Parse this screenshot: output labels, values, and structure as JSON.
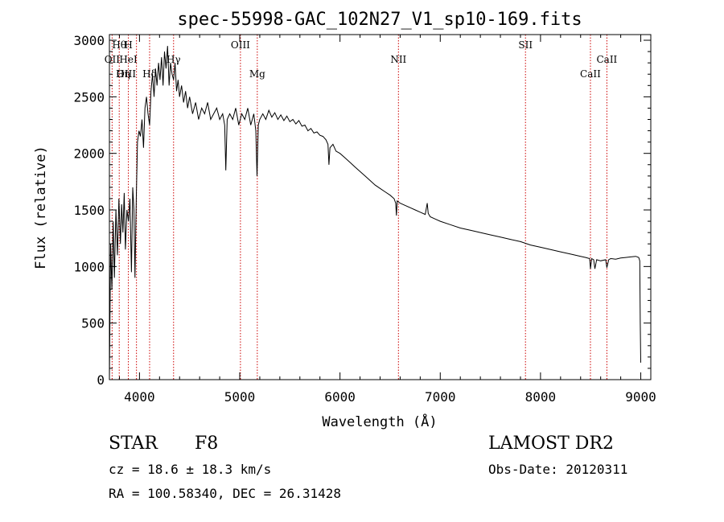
{
  "chart_data": {
    "type": "line",
    "title": "spec-55998-GAC_102N27_V1_sp10-169.fits",
    "xlabel": "Wavelength (Å)",
    "ylabel": "Flux (relative)",
    "xlim": [
      3700,
      9100
    ],
    "ylim": [
      0,
      3050
    ],
    "xticks": [
      4000,
      5000,
      6000,
      7000,
      8000,
      9000
    ],
    "yticks": [
      0,
      500,
      1000,
      1500,
      2000,
      2500,
      3000
    ],
    "grid": false,
    "line_color": "#000000",
    "marker_color": "#cc0000",
    "spectrum": {
      "x": [
        3700,
        3712,
        3725,
        3738,
        3750,
        3765,
        3780,
        3795,
        3810,
        3822,
        3835,
        3848,
        3860,
        3875,
        3890,
        3905,
        3920,
        3933,
        3945,
        3955,
        3968,
        3980,
        3995,
        4010,
        4025,
        4040,
        4055,
        4070,
        4085,
        4101,
        4115,
        4130,
        4145,
        4160,
        4175,
        4190,
        4205,
        4220,
        4235,
        4250,
        4265,
        4280,
        4295,
        4310,
        4325,
        4340,
        4355,
        4370,
        4385,
        4400,
        4420,
        4440,
        4460,
        4480,
        4500,
        4530,
        4560,
        4590,
        4620,
        4650,
        4680,
        4710,
        4740,
        4770,
        4800,
        4830,
        4850,
        4861,
        4875,
        4900,
        4930,
        4960,
        4990,
        5020,
        5050,
        5080,
        5110,
        5140,
        5160,
        5172,
        5185,
        5200,
        5230,
        5260,
        5290,
        5320,
        5350,
        5380,
        5410,
        5440,
        5470,
        5500,
        5530,
        5560,
        5590,
        5620,
        5650,
        5680,
        5710,
        5740,
        5770,
        5800,
        5830,
        5860,
        5880,
        5890,
        5900,
        5930,
        5960,
        6000,
        6050,
        6100,
        6150,
        6200,
        6250,
        6300,
        6350,
        6400,
        6450,
        6500,
        6540,
        6556,
        6563,
        6570,
        6600,
        6650,
        6700,
        6750,
        6800,
        6850,
        6870,
        6880,
        6900,
        6950,
        7000,
        7100,
        7200,
        7300,
        7400,
        7500,
        7600,
        7700,
        7800,
        7900,
        8000,
        8100,
        8200,
        8300,
        8400,
        8450,
        8490,
        8498,
        8510,
        8530,
        8542,
        8560,
        8600,
        8650,
        8662,
        8680,
        8700,
        8750,
        8800,
        8850,
        8900,
        8950,
        8980,
        8990,
        8995,
        9000
      ],
      "flux": [
        0,
        1200,
        800,
        1400,
        900,
        1500,
        1100,
        1600,
        1200,
        1550,
        1300,
        1650,
        1150,
        1500,
        1400,
        1600,
        950,
        1700,
        1500,
        900,
        1600,
        2100,
        2200,
        2150,
        2300,
        2050,
        2400,
        2500,
        2350,
        2250,
        2550,
        2700,
        2500,
        2750,
        2600,
        2800,
        2650,
        2850,
        2600,
        2900,
        2750,
        2950,
        2600,
        2800,
        2700,
        2650,
        2800,
        2550,
        2650,
        2500,
        2600,
        2450,
        2550,
        2400,
        2500,
        2350,
        2450,
        2300,
        2400,
        2350,
        2450,
        2300,
        2350,
        2400,
        2300,
        2350,
        2250,
        1850,
        2300,
        2350,
        2300,
        2400,
        2250,
        2350,
        2300,
        2400,
        2250,
        2350,
        2200,
        1800,
        2250,
        2300,
        2350,
        2300,
        2380,
        2320,
        2360,
        2300,
        2340,
        2290,
        2330,
        2280,
        2300,
        2260,
        2290,
        2240,
        2250,
        2200,
        2220,
        2180,
        2190,
        2160,
        2150,
        2120,
        2080,
        1900,
        2050,
        2080,
        2020,
        2000,
        1960,
        1920,
        1880,
        1840,
        1800,
        1760,
        1720,
        1690,
        1660,
        1630,
        1600,
        1560,
        1450,
        1580,
        1560,
        1540,
        1520,
        1500,
        1480,
        1460,
        1560,
        1470,
        1440,
        1420,
        1400,
        1370,
        1340,
        1320,
        1300,
        1280,
        1260,
        1240,
        1220,
        1190,
        1170,
        1150,
        1130,
        1110,
        1090,
        1080,
        1070,
        980,
        1070,
        1060,
        980,
        1060,
        1050,
        1060,
        990,
        1060,
        1070,
        1065,
        1075,
        1080,
        1085,
        1090,
        1080,
        1050,
        500,
        150
      ]
    },
    "line_markers": [
      {
        "label": "Hθ",
        "x": 3798,
        "row": 1
      },
      {
        "label": "H",
        "x": 3889,
        "row": 1
      },
      {
        "label": "OII",
        "x": 3727,
        "row": 2
      },
      {
        "label": "HeI",
        "x": 3889,
        "row": 2
      },
      {
        "label": "OIII",
        "x": 3869,
        "row": 3
      },
      {
        "label": "Hη",
        "x": 3835,
        "row": 3
      },
      {
        "label": "Hδ",
        "x": 4101,
        "row": 3
      },
      {
        "label": "Hγ",
        "x": 4340,
        "row": 2
      },
      {
        "label": "OIII",
        "x": 5007,
        "row": 1
      },
      {
        "label": "Mg",
        "x": 5175,
        "row": 3
      },
      {
        "label": "NII",
        "x": 6583,
        "row": 2
      },
      {
        "label": "SII",
        "x": 7850,
        "row": 1
      },
      {
        "label": "CaII",
        "x": 8498,
        "row": 3
      },
      {
        "label": "CaII",
        "x": 8662,
        "row": 2
      }
    ],
    "marker_lines_x": [
      3727,
      3798,
      3889,
      3970,
      4101,
      4340,
      5007,
      5175,
      6583,
      7850,
      8498,
      8662
    ]
  },
  "info": {
    "object_class": "STAR",
    "subclass": "F8",
    "survey": "LAMOST DR2",
    "cz": "cz = 18.6 ± 18.3 km/s",
    "obs_date": "Obs-Date: 20120311",
    "coords": "RA = 100.58340, DEC =  26.31428"
  }
}
